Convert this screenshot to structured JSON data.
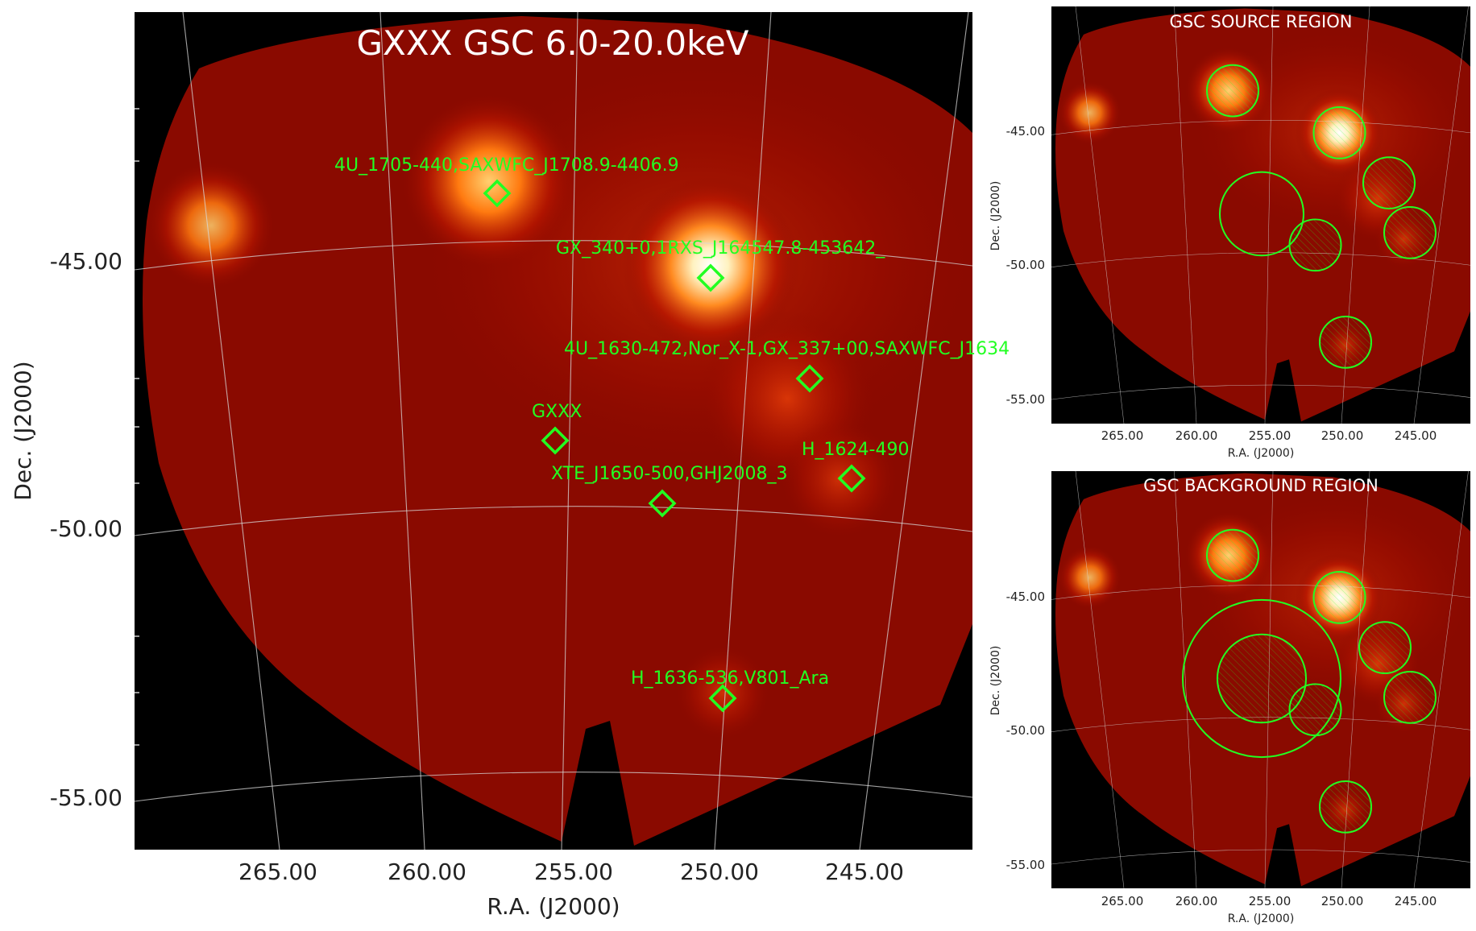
{
  "main": {
    "title": "GXXX GSC 6.0-20.0keV",
    "xlabel": "R.A. (J2000)",
    "ylabel": "Dec. (J2000)",
    "xticks": [
      "265.00",
      "260.00",
      "255.00",
      "250.00",
      "245.00"
    ],
    "yticks": [
      "-45.00",
      "-50.00",
      "-55.00"
    ],
    "sources": [
      {
        "label": "4U_1705-440,SAXWFC_J1708.9-4406.9"
      },
      {
        "label": "GX_340+0,1RXS_J164547.8-453642_"
      },
      {
        "label": "4U_1630-472,Nor_X-1,GX_337+00,SAXWFC_J1634"
      },
      {
        "label": "GXXX"
      },
      {
        "label": "H_1624-490"
      },
      {
        "label": "XTE_J1650-500,GHJ2008_3"
      },
      {
        "label": "H_1636-536,V801_Ara"
      }
    ]
  },
  "source_panel": {
    "title": "GSC SOURCE REGION",
    "xlabel": "R.A. (J2000)",
    "ylabel": "Dec. (J2000)",
    "xticks": [
      "265.00",
      "260.00",
      "255.00",
      "250.00",
      "245.00"
    ],
    "yticks": [
      "-45.00",
      "-50.00",
      "-55.00"
    ]
  },
  "background_panel": {
    "title": "GSC BACKGROUND REGION",
    "xlabel": "R.A. (J2000)",
    "ylabel": "Dec. (J2000)",
    "xticks": [
      "265.00",
      "260.00",
      "255.00",
      "250.00",
      "245.00"
    ],
    "yticks": [
      "-45.00",
      "-50.00",
      "-55.00"
    ]
  },
  "colors": {
    "region": "#22ff22",
    "map_base": "#8a0a00",
    "grid": "#d8d8d8"
  }
}
